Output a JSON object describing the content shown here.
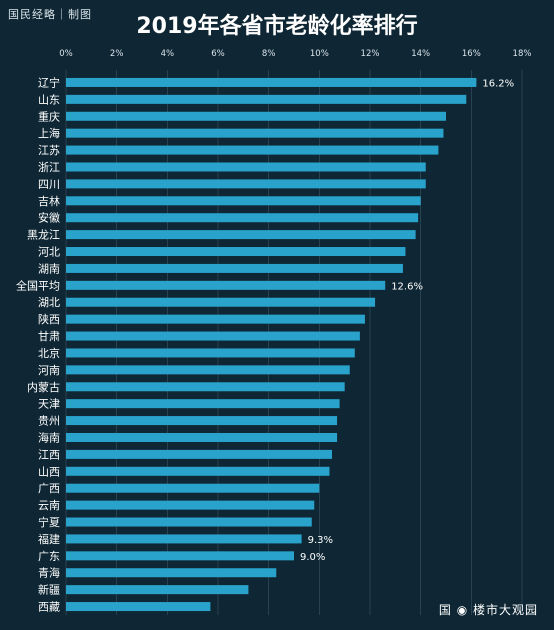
{
  "header": {
    "brand": "国民经略｜制图",
    "title": "2019年各省市老龄化率排行"
  },
  "watermark": "国 ◉ 楼市大观园",
  "colors": {
    "bar": "#29a3cc",
    "background": "#0f2734",
    "text": "#ffffff",
    "grid": "#3a5665"
  },
  "chart_data": {
    "type": "bar",
    "orientation": "horizontal",
    "title": "2019年各省市老龄化率排行",
    "xlim": [
      0,
      18
    ],
    "xticks": [
      "0%",
      "2%",
      "4%",
      "6%",
      "8%",
      "10%",
      "12%",
      "14%",
      "16%",
      "18%"
    ],
    "categories": [
      "辽宁",
      "山东",
      "重庆",
      "上海",
      "江苏",
      "浙江",
      "四川",
      "吉林",
      "安徽",
      "黑龙江",
      "河北",
      "湖南",
      "全国平均",
      "湖北",
      "陕西",
      "甘肃",
      "北京",
      "河南",
      "内蒙古",
      "天津",
      "贵州",
      "海南",
      "江西",
      "山西",
      "广西",
      "云南",
      "宁夏",
      "福建",
      "广东",
      "青海",
      "新疆",
      "西藏"
    ],
    "values": [
      16.2,
      15.8,
      15.0,
      14.9,
      14.7,
      14.2,
      14.2,
      14.0,
      13.9,
      13.8,
      13.4,
      13.3,
      12.6,
      12.2,
      11.8,
      11.6,
      11.4,
      11.2,
      11.0,
      10.8,
      10.7,
      10.7,
      10.5,
      10.4,
      10.0,
      9.8,
      9.7,
      9.3,
      9.0,
      8.3,
      7.2,
      5.7
    ],
    "data_labels": [
      {
        "category": "辽宁",
        "text": "16.2%"
      },
      {
        "category": "全国平均",
        "text": "12.6%"
      },
      {
        "category": "福建",
        "text": "9.3%"
      },
      {
        "category": "广东",
        "text": "9.0%"
      }
    ]
  }
}
